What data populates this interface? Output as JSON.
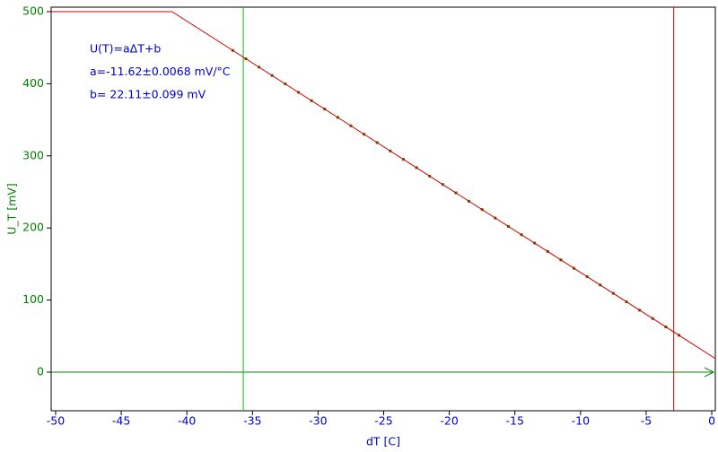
{
  "chart_data": {
    "type": "line",
    "xlabel": "dT [C]",
    "ylabel": "U_T [mV]",
    "annotations": [
      "U(T)=aΔT+b",
      "a=-11.62±0.0068 mV/°C",
      "b= 22.11±0.099 mV"
    ],
    "xlim": [
      -50.34,
      0.27
    ],
    "ylim": [
      -53.5,
      506.2
    ],
    "xticks": [
      -50,
      -45,
      -40,
      -35,
      -30,
      -25,
      -20,
      -15,
      -10,
      -5,
      0
    ],
    "yticks": [
      0,
      100,
      200,
      300,
      400,
      500
    ],
    "series": [
      {
        "style": "line",
        "color": "#d00000",
        "x": [
          -50.34,
          -41.13,
          0.27
        ],
        "values": [
          500,
          500,
          18.97
        ]
      },
      {
        "style": "markers",
        "color": "#3d6b00",
        "x": [
          -36.5,
          -35.5,
          -34.5,
          -33.5,
          -32.5,
          -31.5,
          -30.5,
          -29.5,
          -28.5,
          -27.5,
          -26.5,
          -25.5,
          -24.5,
          -23.5,
          -22.5,
          -21.5,
          -20.5,
          -19.5,
          -18.5,
          -17.5,
          -16.5,
          -15.5,
          -14.5,
          -13.5,
          -12.5,
          -11.5,
          -10.5,
          -9.5,
          -8.5,
          -7.5,
          -6.5,
          -5.5,
          -4.5,
          -3.5,
          -2.5
        ],
        "values": [
          446.2,
          434.6,
          423.0,
          411.4,
          399.8,
          388.1,
          376.5,
          364.9,
          353.3,
          341.7,
          330.0,
          318.4,
          306.8,
          295.2,
          283.6,
          271.9,
          260.3,
          248.7,
          237.1,
          225.5,
          213.8,
          202.2,
          190.6,
          179.0,
          167.4,
          155.7,
          144.1,
          132.5,
          120.9,
          109.3,
          97.6,
          86.0,
          74.4,
          62.8,
          51.2
        ]
      }
    ],
    "vlines": [
      {
        "x": -35.7,
        "color": "#00c000"
      },
      {
        "x": -2.9,
        "color": "#e00000"
      }
    ],
    "xtick_color": "#0000cc",
    "ytick_color": "#008000",
    "zero_line_color": "#008000"
  }
}
